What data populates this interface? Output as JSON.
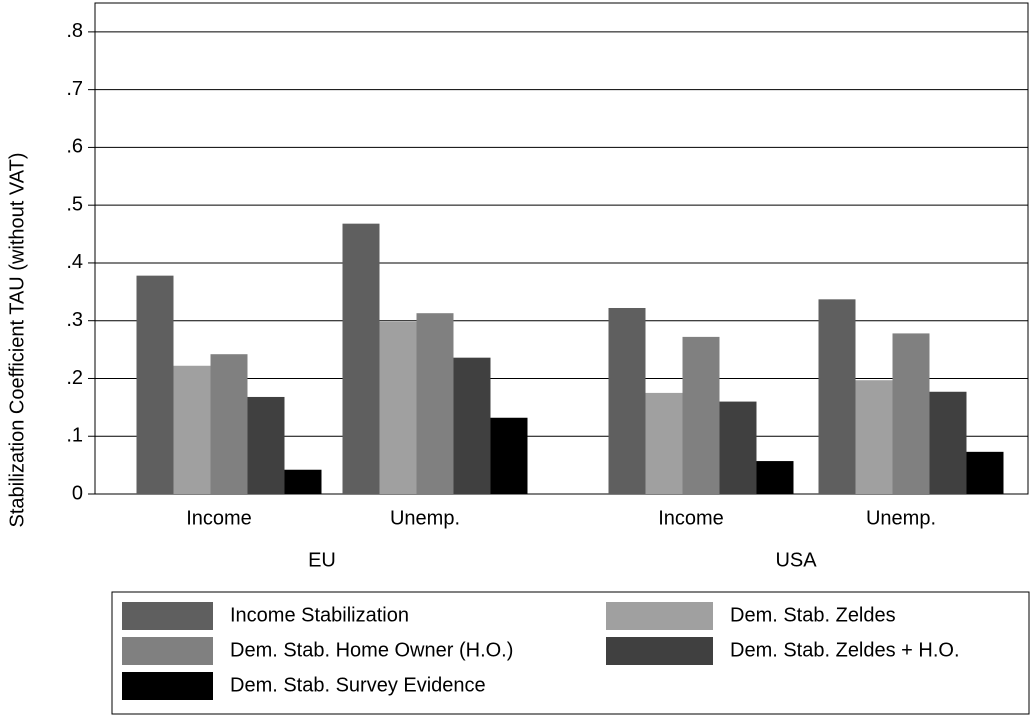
{
  "chart_data": {
    "type": "bar",
    "y_label": "Stabilization Coefficient TAU (without VAT)",
    "categories": [
      "Income",
      "Unemp.",
      "Income",
      "Unemp."
    ],
    "groups": [
      "EU",
      "USA"
    ],
    "series": [
      {
        "name": "Income Stabilization",
        "color": "#5f5f5f",
        "values": [
          0.378,
          0.468,
          0.322,
          0.337
        ]
      },
      {
        "name": "Dem. Stab. Zeldes",
        "color": "#a0a0a0",
        "values": [
          0.222,
          0.298,
          0.175,
          0.197
        ]
      },
      {
        "name": "Dem. Stab. Home Owner (H.O.)",
        "color": "#808080",
        "values": [
          0.242,
          0.313,
          0.272,
          0.278
        ]
      },
      {
        "name": "Dem. Stab. Zeldes + H.O.",
        "color": "#404040",
        "values": [
          0.168,
          0.236,
          0.16,
          0.177
        ]
      },
      {
        "name": "Dem. Stab. Survey Evidence",
        "color": "#000000",
        "values": [
          0.042,
          0.132,
          0.057,
          0.073
        ]
      }
    ],
    "ylim": [
      0,
      0.85
    ],
    "yticks": [
      0,
      {
        "value": 0.1,
        "label": ".1"
      },
      {
        "value": 0.2,
        "label": ".2"
      },
      {
        "value": 0.3,
        "label": ".3"
      },
      {
        "value": 0.4,
        "label": ".4"
      },
      {
        "value": 0.5,
        "label": ".5"
      },
      {
        "value": 0.6,
        "label": ".6"
      },
      {
        "value": 0.7,
        "label": ".7"
      },
      {
        "value": 0.8,
        "label": ".8"
      }
    ],
    "grid": true
  }
}
